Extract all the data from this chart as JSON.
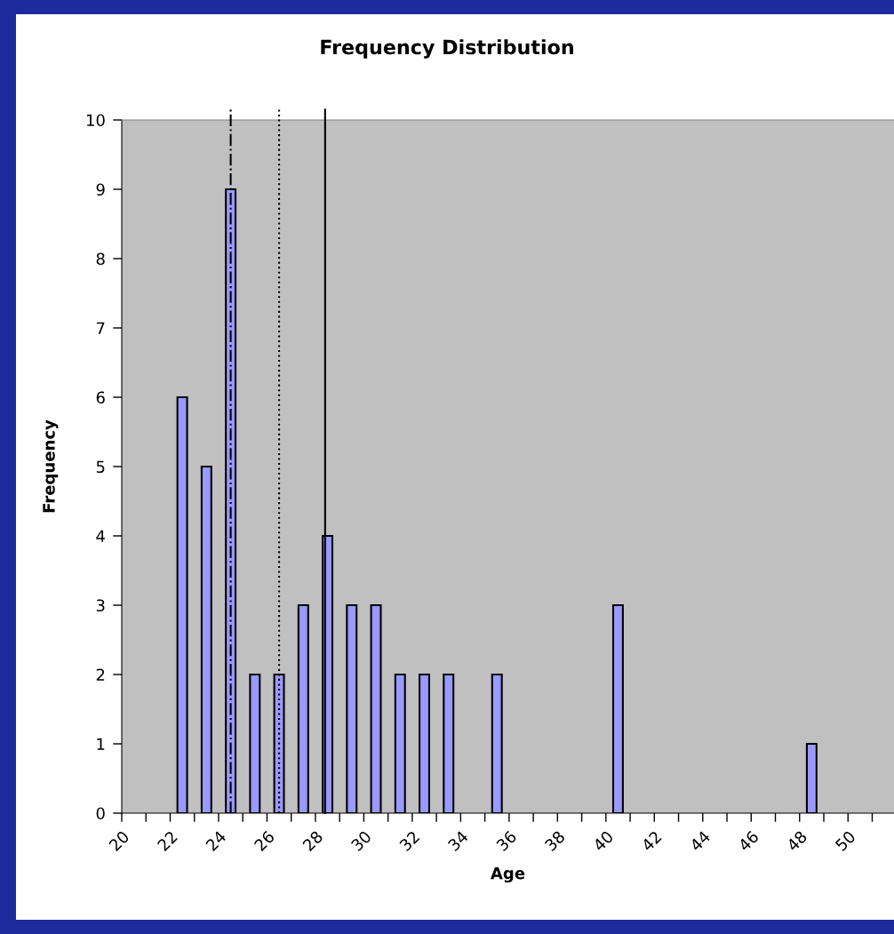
{
  "chart_data": {
    "type": "bar",
    "title": "Frequency Distribution",
    "xlabel": "Age",
    "ylabel": "Frequency",
    "x": [
      22.5,
      23.5,
      24.5,
      25.5,
      26.5,
      27.5,
      28.5,
      29.5,
      30.5,
      31.5,
      32.5,
      33.5,
      35.5,
      40.5,
      48.5
    ],
    "values": [
      6,
      5,
      9,
      2,
      2,
      3,
      4,
      3,
      3,
      2,
      2,
      2,
      2,
      3,
      1
    ],
    "color": "#9999ff",
    "xlim": [
      20,
      51.9
    ],
    "xticks": [
      20,
      {
        "value": 21,
        "label": null
      },
      22,
      {
        "value": 23,
        "label": null
      },
      24,
      {
        "value": 25,
        "label": null
      },
      26,
      {
        "value": 27,
        "label": null
      },
      28,
      {
        "value": 29,
        "label": null
      },
      30,
      {
        "value": 31,
        "label": null
      },
      32,
      {
        "value": 33,
        "label": null
      },
      34,
      {
        "value": 35,
        "label": null
      },
      36,
      {
        "value": 37,
        "label": null
      },
      38,
      {
        "value": 39,
        "label": null
      },
      40,
      {
        "value": 41,
        "label": null
      },
      42,
      {
        "value": 43,
        "label": null
      },
      44,
      {
        "value": 45,
        "label": null
      },
      46,
      {
        "value": 47,
        "label": null
      },
      48,
      {
        "value": 49,
        "label": null
      },
      50,
      {
        "value": 51,
        "label": null
      }
    ],
    "ylim": [
      0,
      10
    ],
    "yticks": [
      0,
      1,
      2,
      3,
      4,
      5,
      6,
      7,
      8,
      9,
      10
    ],
    "ref_lines": [
      {
        "axis": "x",
        "value": 24.5,
        "color": "#000000",
        "line_style": "dashdot"
      },
      {
        "axis": "x",
        "value": 26.5,
        "color": "#000000",
        "line_style": "dotted"
      },
      {
        "axis": "x",
        "value": 28.4,
        "color": "#000000",
        "line_style": "solid"
      }
    ],
    "grid": false,
    "legend": false
  }
}
